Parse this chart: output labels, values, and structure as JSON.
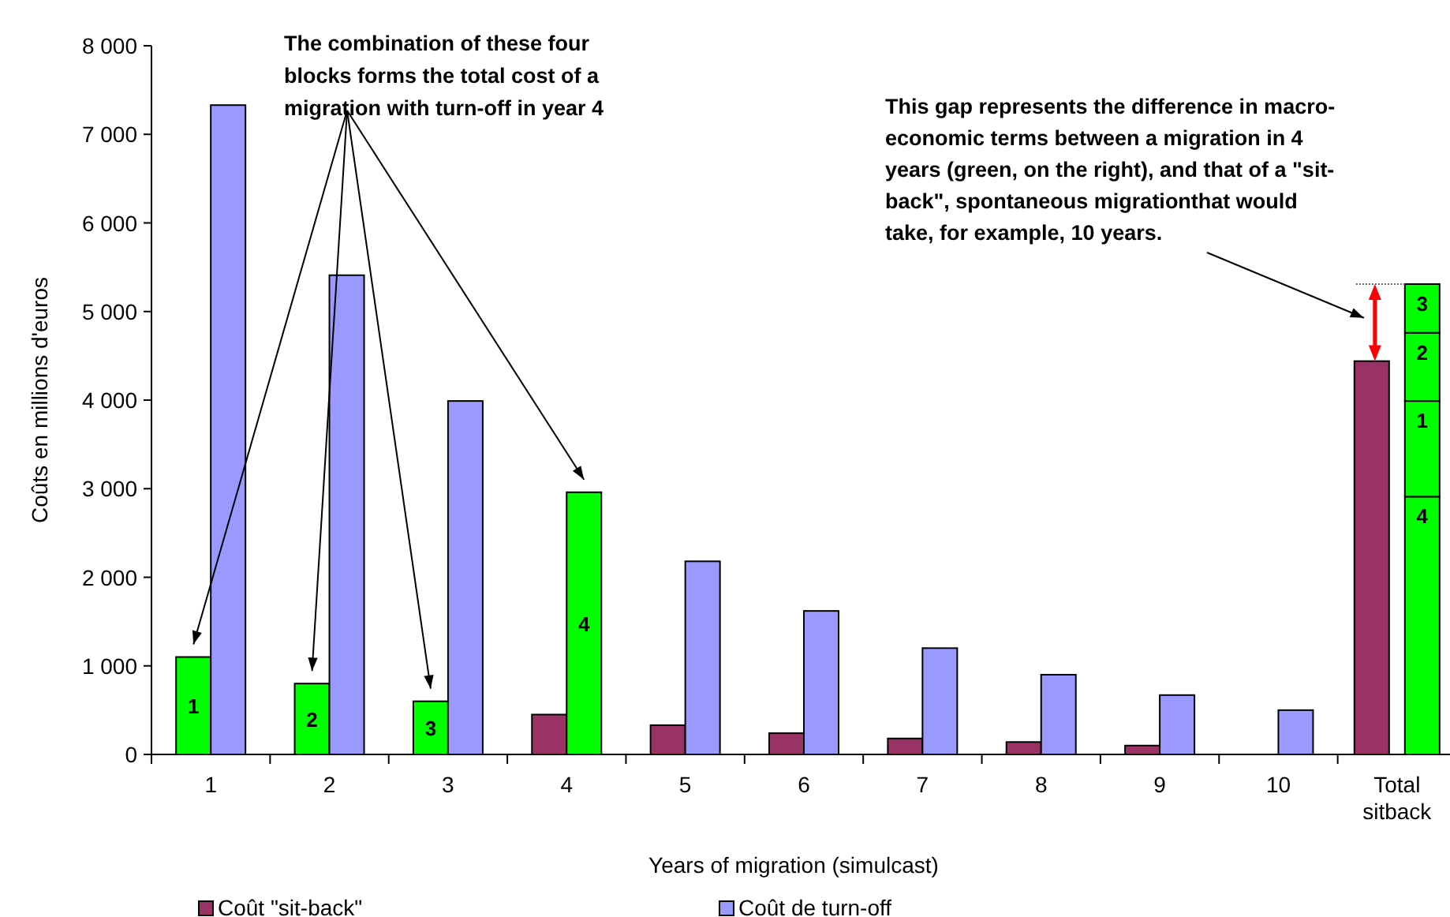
{
  "chart_data": {
    "type": "bar",
    "xlabel": "Years of migration (simulcast)",
    "ylabel": "Coûts en millions d'euros",
    "categories": [
      "1",
      "2",
      "3",
      "4",
      "5",
      "6",
      "7",
      "8",
      "9",
      "10",
      "Total\nsitback"
    ],
    "series": [
      {
        "name": "Coût \"sit-back\"",
        "color": "#993366",
        "colors": [
          "#00ff00",
          "#00ff00",
          "#00ff00",
          "#993366",
          "#993366",
          "#993366",
          "#993366",
          "#993366",
          "#993366",
          "#993366",
          "#993366"
        ],
        "values": [
          1100,
          800,
          600,
          450,
          330,
          240,
          180,
          140,
          100,
          null,
          4440
        ]
      },
      {
        "name": "Coût de turn-off",
        "color": "#9999ff",
        "colors": [
          "#9999ff",
          "#9999ff",
          "#9999ff",
          "#00ff00",
          "#9999ff",
          "#9999ff",
          "#9999ff",
          "#9999ff",
          "#9999ff",
          "#9999ff",
          "#00ff00"
        ],
        "values": [
          7330,
          5410,
          3990,
          2960,
          2180,
          1620,
          1200,
          900,
          670,
          500,
          2910
        ]
      },
      {
        "color": "#00ff00",
        "values": [
          null,
          null,
          null,
          null,
          null,
          null,
          null,
          null,
          null,
          null,
          1080
        ],
        "base": [
          null,
          null,
          null,
          null,
          null,
          null,
          null,
          null,
          null,
          null,
          2910
        ]
      },
      {
        "color": "#00ff00",
        "values": [
          null,
          null,
          null,
          null,
          null,
          null,
          null,
          null,
          null,
          null,
          770
        ],
        "base": [
          null,
          null,
          null,
          null,
          null,
          null,
          null,
          null,
          null,
          null,
          3990
        ]
      },
      {
        "color": "#00ff00",
        "values": [
          null,
          null,
          null,
          null,
          null,
          null,
          null,
          null,
          null,
          null,
          550
        ],
        "base": [
          null,
          null,
          null,
          null,
          null,
          null,
          null,
          null,
          null,
          null,
          4760
        ]
      }
    ],
    "ylim": [
      0,
      8000
    ],
    "yticks": [
      {
        "value": 0,
        "label": "0"
      },
      {
        "value": 1000,
        "label": "1 000"
      },
      {
        "value": 2000,
        "label": "2 000"
      },
      {
        "value": 3000,
        "label": "3 000"
      },
      {
        "value": 4000,
        "label": "4 000"
      },
      {
        "value": 5000,
        "label": "5 000"
      },
      {
        "value": 6000,
        "label": "6 000"
      },
      {
        "value": 7000,
        "label": "7 000"
      },
      {
        "value": 8000,
        "label": "8 000"
      }
    ],
    "grid": false,
    "legend": "bottom",
    "annotations": [
      "The combination of these four\nblocks forms the total cost of a\nmigration with turn-off in year 4",
      "This gap represents the difference in macro-\neconomic terms between a migration in 4\nyears (green, on the right), and that of a \"sit-\nback\", spontaneous migrationthat would\ntake, for example, 10 years.",
      "1",
      "2",
      "3",
      "4",
      "4",
      "1",
      "2",
      "3"
    ]
  }
}
